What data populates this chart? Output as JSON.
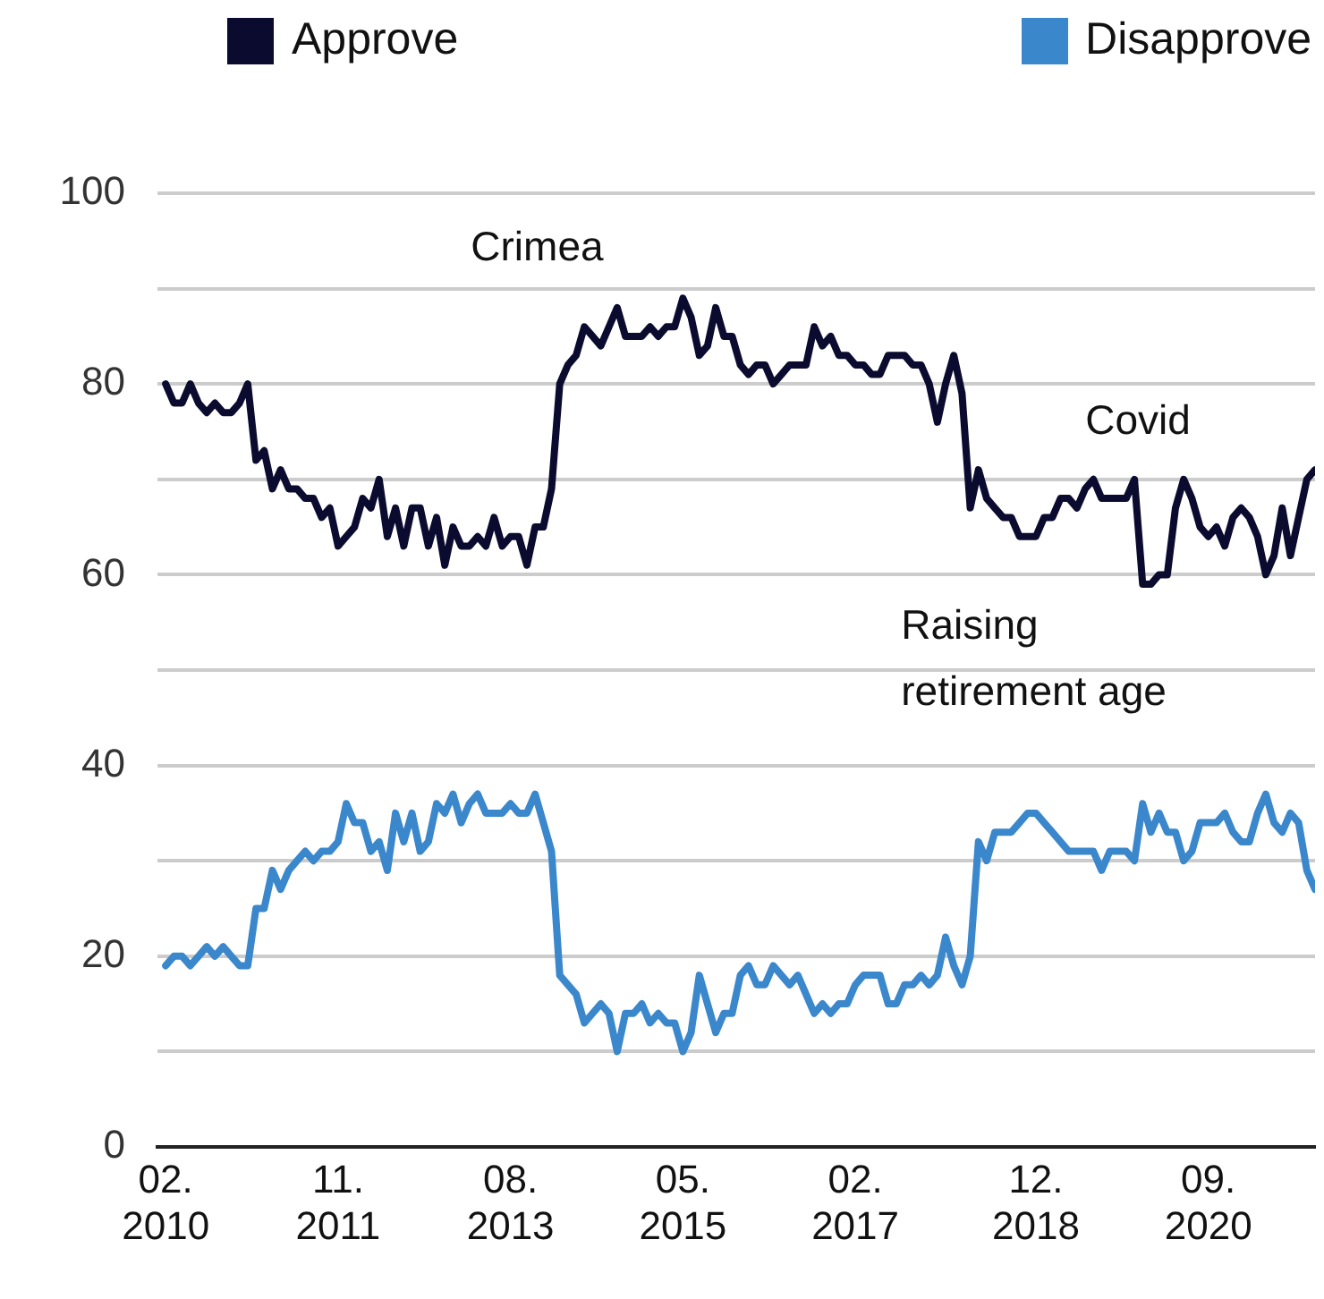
{
  "chart_data": {
    "type": "line",
    "legend": "top",
    "grid": "y",
    "marker": "none",
    "line_style": "solid",
    "x": [
      "2010-02",
      "2010-03",
      "2010-04",
      "2010-05",
      "2010-06",
      "2010-07",
      "2010-08",
      "2010-09",
      "2010-10",
      "2010-11",
      "2010-12",
      "2011-01",
      "2011-02",
      "2011-03",
      "2011-04",
      "2011-05",
      "2011-06",
      "2011-07",
      "2011-08",
      "2011-09",
      "2011-10",
      "2011-11",
      "2011-12",
      "2012-01",
      "2012-02",
      "2012-03",
      "2012-04",
      "2012-05",
      "2012-06",
      "2012-07",
      "2012-08",
      "2012-09",
      "2012-10",
      "2012-11",
      "2012-12",
      "2013-01",
      "2013-02",
      "2013-03",
      "2013-04",
      "2013-05",
      "2013-06",
      "2013-07",
      "2013-08",
      "2013-09",
      "2013-10",
      "2013-11",
      "2013-12",
      "2014-01",
      "2014-02",
      "2014-03",
      "2014-04",
      "2014-05",
      "2014-06",
      "2014-07",
      "2014-08",
      "2014-09",
      "2014-10",
      "2014-11",
      "2014-12",
      "2015-01",
      "2015-02",
      "2015-03",
      "2015-04",
      "2015-05",
      "2015-06",
      "2015-07",
      "2015-08",
      "2015-09",
      "2015-10",
      "2015-11",
      "2015-12",
      "2016-01",
      "2016-02",
      "2016-03",
      "2016-04",
      "2016-05",
      "2016-06",
      "2016-07",
      "2016-08",
      "2016-09",
      "2016-10",
      "2016-11",
      "2016-12",
      "2017-01",
      "2017-02",
      "2017-03",
      "2017-04",
      "2017-05",
      "2017-06",
      "2017-07",
      "2017-08",
      "2017-09",
      "2017-10",
      "2017-11",
      "2017-12",
      "2018-01",
      "2018-02",
      "2018-03",
      "2018-04",
      "2018-05",
      "2018-06",
      "2018-07",
      "2018-08",
      "2018-09",
      "2018-10",
      "2018-11",
      "2018-12",
      "2019-01",
      "2019-02",
      "2019-03",
      "2019-04",
      "2019-05",
      "2019-06",
      "2019-07",
      "2019-08",
      "2019-09",
      "2019-10",
      "2019-11",
      "2019-12",
      "2020-01",
      "2020-02",
      "2020-03",
      "2020-04",
      "2020-05",
      "2020-06",
      "2020-07",
      "2020-08",
      "2020-09",
      "2020-10",
      "2020-11",
      "2020-12",
      "2021-01",
      "2021-02",
      "2021-03",
      "2021-04",
      "2021-05",
      "2021-06",
      "2021-07",
      "2021-08",
      "2021-09",
      "2021-10"
    ],
    "series": [
      {
        "name": "Approve",
        "color": "#0b0b30",
        "values": [
          80,
          78,
          78,
          80,
          78,
          77,
          78,
          77,
          77,
          78,
          80,
          72,
          73,
          69,
          71,
          69,
          69,
          68,
          68,
          66,
          67,
          63,
          64,
          65,
          68,
          67,
          70,
          64,
          67,
          63,
          67,
          67,
          63,
          66,
          61,
          65,
          63,
          63,
          64,
          63,
          66,
          63,
          64,
          64,
          61,
          65,
          65,
          69,
          80,
          82,
          83,
          86,
          85,
          84,
          86,
          88,
          85,
          85,
          85,
          86,
          85,
          86,
          86,
          89,
          87,
          83,
          84,
          88,
          85,
          85,
          82,
          81,
          82,
          82,
          80,
          81,
          82,
          82,
          82,
          86,
          84,
          85,
          83,
          83,
          82,
          82,
          81,
          81,
          83,
          83,
          83,
          82,
          82,
          80,
          76,
          80,
          83,
          79,
          67,
          71,
          68,
          67,
          66,
          66,
          64,
          64,
          64,
          66,
          66,
          68,
          68,
          67,
          69,
          70,
          68,
          68,
          68,
          68,
          70,
          59,
          59,
          60,
          60,
          67,
          70,
          68,
          65,
          64,
          65,
          63,
          66,
          67,
          66,
          64,
          60,
          62,
          67,
          62,
          66,
          70,
          71
        ]
      },
      {
        "name": "Disapprove",
        "color": "#3a87cc",
        "values": [
          19,
          20,
          20,
          19,
          20,
          21,
          20,
          21,
          20,
          19,
          19,
          25,
          25,
          29,
          27,
          29,
          30,
          31,
          30,
          31,
          31,
          32,
          36,
          34,
          34,
          31,
          32,
          29,
          35,
          32,
          35,
          31,
          32,
          36,
          35,
          37,
          34,
          36,
          37,
          35,
          35,
          35,
          36,
          35,
          35,
          37,
          34,
          31,
          18,
          17,
          16,
          13,
          14,
          15,
          14,
          10,
          14,
          14,
          15,
          13,
          14,
          13,
          13,
          10,
          12,
          18,
          15,
          12,
          14,
          14,
          18,
          19,
          17,
          17,
          19,
          18,
          17,
          18,
          16,
          14,
          15,
          14,
          15,
          15,
          17,
          18,
          18,
          18,
          15,
          15,
          17,
          17,
          18,
          17,
          18,
          22,
          19,
          17,
          20,
          32,
          30,
          33,
          33,
          33,
          34,
          35,
          35,
          34,
          33,
          32,
          31,
          31,
          31,
          31,
          29,
          31,
          31,
          31,
          30,
          36,
          33,
          35,
          33,
          33,
          30,
          31,
          34,
          34,
          34,
          35,
          33,
          32,
          32,
          35,
          37,
          34,
          33,
          35,
          34,
          29,
          27
        ]
      }
    ],
    "xlim": [
      "2010-01",
      "2021-10"
    ],
    "xticks": [
      {
        "value": "2010-02",
        "label": "02. 2010"
      },
      {
        "value": "2011-11",
        "label": "11. 2011"
      },
      {
        "value": "2013-08",
        "label": "08. 2013"
      },
      {
        "value": "2015-05",
        "label": "05. 2015"
      },
      {
        "value": "2017-02",
        "label": "02. 2017"
      },
      {
        "value": "2018-12",
        "label": "12. 2018"
      },
      {
        "value": "2020-09",
        "label": "09. 2020"
      }
    ],
    "ylim": [
      0,
      100
    ],
    "yticks": [
      0,
      {
        "value": 10,
        "label": null
      },
      20,
      {
        "value": 30,
        "label": null
      },
      40,
      {
        "value": 50,
        "label": null
      },
      60,
      {
        "value": 70,
        "label": null
      },
      80,
      {
        "value": 90,
        "label": null
      },
      100
    ],
    "annotations": [
      "Crimea",
      "Covid",
      "Raising retirement age"
    ]
  }
}
